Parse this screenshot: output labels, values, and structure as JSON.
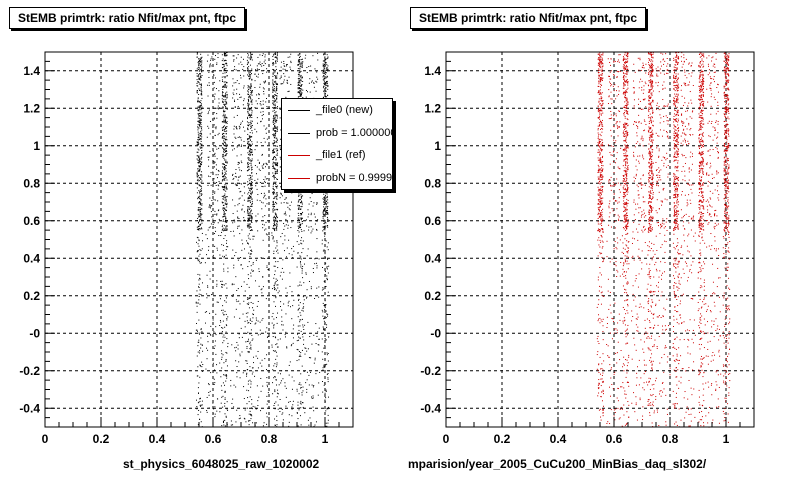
{
  "footer_text": "",
  "chart_data": [
    {
      "type": "scatter",
      "title": "StEMB primtrk: ratio Nfit/max pnt, ftpc",
      "xlabel": "st_physics_6048025_raw_1020002",
      "ylabel": "",
      "xlim": [
        0,
        1.1
      ],
      "ylim": [
        -0.5,
        1.5
      ],
      "xticks": [
        0,
        0.2,
        0.4,
        0.6,
        0.8,
        1
      ],
      "xtick_labels": [
        "0",
        "0.2",
        "0.4",
        "0.6",
        "0.8",
        "1"
      ],
      "yticks": [
        -0.4,
        -0.2,
        0,
        0.2,
        0.4,
        0.6,
        0.8,
        1,
        1.2,
        1.4
      ],
      "ytick_labels": [
        "-0.4",
        "-0.2",
        "-0",
        "0.2",
        "0.4",
        "0.6",
        "0.8",
        "1",
        "1.2",
        "1.4"
      ],
      "grid": true,
      "series": [
        {
          "name": "_file0 (new)",
          "color": "#000000",
          "dense_bands_x": [
            0.55,
            0.64,
            0.73,
            0.82,
            0.91,
            1.0
          ],
          "sparse_bands_x": [
            0.6,
            0.69,
            0.77,
            0.86,
            0.95
          ]
        }
      ],
      "legend": {
        "placement": "top-right",
        "entries": [
          {
            "label": "_file0 (new)",
            "color": "#000000"
          },
          {
            "label": "prob = 1.000000",
            "color": "#000000"
          },
          {
            "label": "_file1 (ref)",
            "color": "#cc0000"
          },
          {
            "label": "probN = 0.999914",
            "color": "#cc0000"
          }
        ]
      }
    },
    {
      "type": "scatter",
      "title": "StEMB primtrk: ratio Nfit/max pnt, ftpc",
      "xlabel": "mparision/year_2005_CuCu200_MinBias_daq_sl302/",
      "ylabel": "",
      "xlim": [
        0,
        1.1
      ],
      "ylim": [
        -0.5,
        1.5
      ],
      "xticks": [
        0,
        0.2,
        0.4,
        0.6,
        0.8,
        1
      ],
      "xtick_labels": [
        "0",
        "0.2",
        "0.4",
        "0.6",
        "0.8",
        "1"
      ],
      "yticks": [
        -0.4,
        -0.2,
        0,
        0.2,
        0.4,
        0.6,
        0.8,
        1,
        1.2,
        1.4
      ],
      "ytick_labels": [
        "-0.4",
        "-0.2",
        "-0",
        "0.2",
        "0.4",
        "0.6",
        "0.8",
        "1",
        "1.2",
        "1.4"
      ],
      "grid": true,
      "series": [
        {
          "name": "_file1 (ref)",
          "color": "#cc0000",
          "dense_bands_x": [
            0.55,
            0.64,
            0.73,
            0.82,
            0.91,
            1.0
          ],
          "sparse_bands_x": [
            0.6,
            0.69,
            0.77,
            0.86,
            0.95
          ]
        }
      ]
    }
  ]
}
